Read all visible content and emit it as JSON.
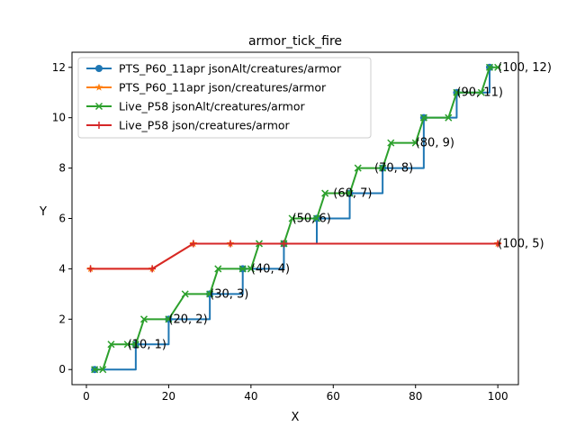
{
  "chart_data": {
    "type": "line",
    "title": "armor_tick_fire",
    "xlabel": "X",
    "ylabel": "Y",
    "xlim": [
      -3.5,
      105
    ],
    "ylim": [
      -0.6,
      12.6
    ],
    "x_ticks": [
      0,
      20,
      40,
      60,
      80,
      100
    ],
    "y_ticks": [
      0,
      2,
      4,
      6,
      8,
      10,
      12
    ],
    "grid": false,
    "legend_position": "upper-left",
    "series": [
      {
        "name": "PTS_P60_11apr jsonAlt/creatures/armor",
        "color": "#1f77b4",
        "marker": "circle",
        "step": true,
        "x": [
          2,
          12,
          20,
          30,
          38,
          48,
          56,
          64,
          72,
          82,
          90,
          98
        ],
        "y": [
          0,
          1,
          2,
          3,
          4,
          5,
          6,
          7,
          8,
          10,
          11,
          12
        ]
      },
      {
        "name": "PTS_P60_11apr json/creatures/armor",
        "color": "#ff7f0e",
        "marker": "star",
        "step": false,
        "x": [
          1,
          16,
          26,
          35,
          48,
          100
        ],
        "y": [
          4,
          4,
          5,
          5,
          5,
          5
        ]
      },
      {
        "name": "Live_P58 jsonAlt/creatures/armor",
        "color": "#2ca02c",
        "marker": "x",
        "step": false,
        "x": [
          2,
          4,
          6,
          10,
          12,
          14,
          20,
          24,
          30,
          32,
          38,
          40,
          42,
          48,
          50,
          56,
          58,
          64,
          66,
          72,
          74,
          80,
          82,
          88,
          90,
          96,
          98,
          100
        ],
        "y": [
          0,
          0,
          1,
          1,
          1,
          2,
          2,
          3,
          3,
          4,
          4,
          4,
          5,
          5,
          6,
          6,
          7,
          7,
          8,
          8,
          9,
          9,
          10,
          10,
          11,
          11,
          12,
          12
        ]
      },
      {
        "name": "Live_P58 json/creatures/armor",
        "color": "#d62728",
        "marker": "plus",
        "step": false,
        "x": [
          1,
          16,
          26,
          35,
          48,
          100
        ],
        "y": [
          4,
          4,
          5,
          5,
          5,
          5
        ]
      }
    ],
    "annotations": [
      {
        "text": "(10, 1)",
        "x": 10,
        "y": 1
      },
      {
        "text": "(20, 2)",
        "x": 20,
        "y": 2
      },
      {
        "text": "(30, 3)",
        "x": 30,
        "y": 3
      },
      {
        "text": "(40, 4)",
        "x": 40,
        "y": 4
      },
      {
        "text": "(50, 6)",
        "x": 50,
        "y": 6
      },
      {
        "text": "(60, 7)",
        "x": 60,
        "y": 7
      },
      {
        "text": "(70, 8)",
        "x": 70,
        "y": 8
      },
      {
        "text": "(80, 9)",
        "x": 80,
        "y": 9
      },
      {
        "text": "(90, 11)",
        "x": 90,
        "y": 11
      },
      {
        "text": "(100, 12)",
        "x": 100,
        "y": 12
      },
      {
        "text": "(100, 5)",
        "x": 100,
        "y": 5
      }
    ]
  }
}
